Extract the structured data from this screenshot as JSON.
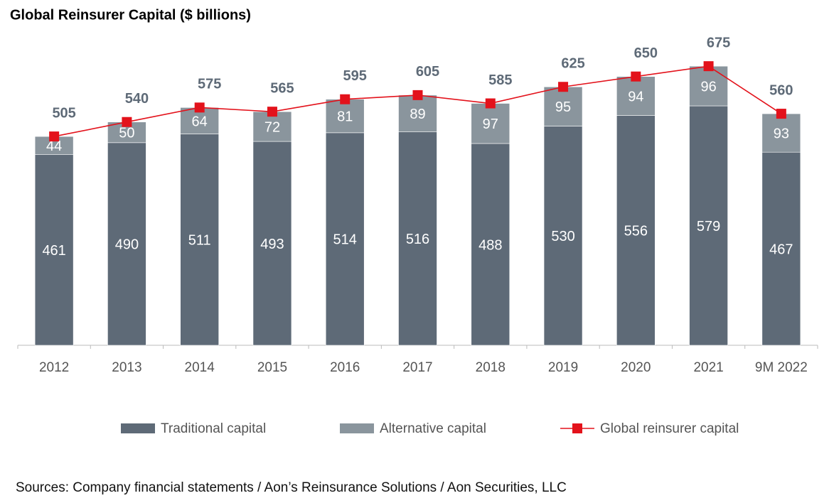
{
  "chart_data": {
    "type": "bar",
    "stacked": true,
    "title": "Global Reinsurer Capital ($ billions)",
    "categories": [
      "2012",
      "2013",
      "2014",
      "2015",
      "2016",
      "2017",
      "2018",
      "2019",
      "2020",
      "2021",
      "9M 2022"
    ],
    "series": [
      {
        "name": "Traditional capital",
        "color": "#5e6a77",
        "values": [
          461,
          490,
          511,
          493,
          514,
          516,
          488,
          530,
          556,
          579,
          467
        ]
      },
      {
        "name": "Alternative capital",
        "color": "#8a959d",
        "values": [
          44,
          50,
          64,
          72,
          81,
          89,
          97,
          95,
          94,
          96,
          93
        ]
      },
      {
        "name": "Global reinsurer capital",
        "type": "line",
        "color": "#e3121b",
        "values": [
          505,
          540,
          575,
          565,
          595,
          605,
          585,
          625,
          650,
          675,
          560
        ]
      }
    ],
    "legend": "bottom",
    "source": "Sources: Company financial statements / Aon’s Reinsurance Solutions / Aon Securities, LLC"
  }
}
